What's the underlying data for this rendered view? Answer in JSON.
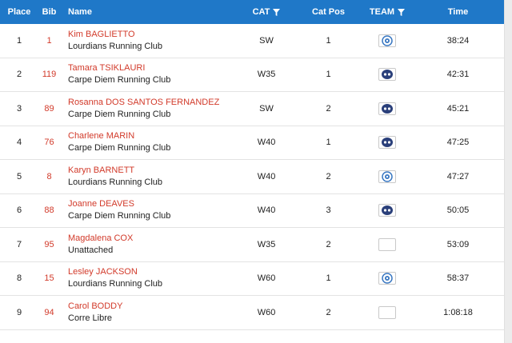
{
  "header": {
    "place": "Place",
    "bib": "Bib",
    "name": "Name",
    "cat": "CAT",
    "catpos": "Cat Pos",
    "team": "TEAM",
    "time": "Time"
  },
  "rows": [
    {
      "place": "1",
      "bib": "1",
      "name": "Kim BAGLIETTO",
      "club": "Lourdians Running Club",
      "cat": "SW",
      "catpos": "1",
      "team_icon": "lourdians-logo-icon",
      "time": "38:24"
    },
    {
      "place": "2",
      "bib": "119",
      "name": "Tamara TSIKLAURI",
      "club": "Carpe Diem Running Club",
      "cat": "W35",
      "catpos": "1",
      "team_icon": "carpe-diem-logo-icon",
      "time": "42:31"
    },
    {
      "place": "3",
      "bib": "89",
      "name": "Rosanna DOS SANTOS FERNANDEZ",
      "club": "Carpe Diem Running Club",
      "cat": "SW",
      "catpos": "2",
      "team_icon": "carpe-diem-logo-icon",
      "time": "45:21"
    },
    {
      "place": "4",
      "bib": "76",
      "name": "Charlene MARIN",
      "club": "Carpe Diem Running Club",
      "cat": "W40",
      "catpos": "1",
      "team_icon": "carpe-diem-logo-icon",
      "time": "47:25"
    },
    {
      "place": "5",
      "bib": "8",
      "name": "Karyn BARNETT",
      "club": "Lourdians Running Club",
      "cat": "W40",
      "catpos": "2",
      "team_icon": "lourdians-logo-icon",
      "time": "47:27"
    },
    {
      "place": "6",
      "bib": "88",
      "name": "Joanne DEAVES",
      "club": "Carpe Diem Running Club",
      "cat": "W40",
      "catpos": "3",
      "team_icon": "carpe-diem-logo-icon",
      "time": "50:05"
    },
    {
      "place": "7",
      "bib": "95",
      "name": "Magdalena COX",
      "club": "Unattached",
      "cat": "W35",
      "catpos": "2",
      "team_icon": "empty-badge-icon",
      "time": "53:09"
    },
    {
      "place": "8",
      "bib": "15",
      "name": "Lesley JACKSON",
      "club": "Lourdians Running Club",
      "cat": "W60",
      "catpos": "1",
      "team_icon": "lourdians-logo-icon",
      "time": "58:37"
    },
    {
      "place": "9",
      "bib": "94",
      "name": "Carol BODDY",
      "club": "Corre Libre",
      "cat": "W60",
      "catpos": "2",
      "team_icon": "empty-badge-icon",
      "time": "1:08:18"
    }
  ],
  "colors": {
    "header_bg": "#1f78c8",
    "accent_red": "#d23a2a",
    "lourdians_blue": "#3a78c2",
    "carpe_diem_navy": "#2a3f7a"
  }
}
